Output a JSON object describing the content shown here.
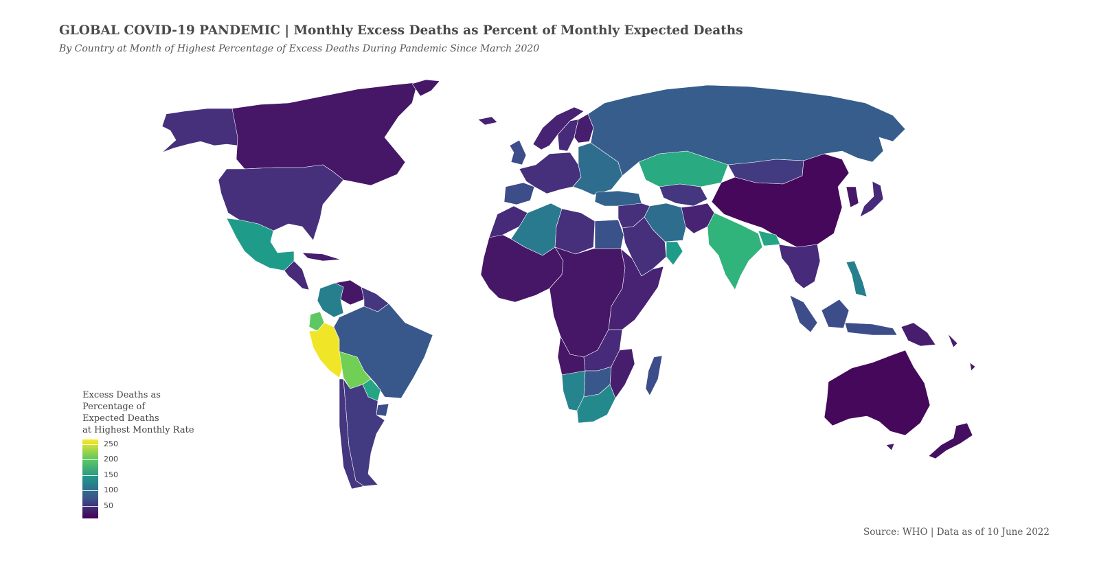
{
  "header": {
    "title": "GLOBAL COVID-19 PANDEMIC | Monthly Excess Deaths as Percent of Monthly Expected Deaths",
    "subtitle": "By Country at Month of Highest Percentage of Excess Deaths During Pandemic Since March 2020"
  },
  "legend": {
    "title_lines": [
      "Excess Deaths as",
      "Percentage of",
      "Expected Deaths",
      "at Highest Monthly Rate"
    ],
    "ticks": [
      {
        "label": "250",
        "value": 250
      },
      {
        "label": "200",
        "value": 200
      },
      {
        "label": "150",
        "value": 150
      },
      {
        "label": "100",
        "value": 100
      },
      {
        "label": "50",
        "value": 50
      }
    ],
    "scale_min": 10,
    "scale_max": 265
  },
  "footer": {
    "source": "Source: WHO | Data as of 10 June 2022"
  },
  "map": {
    "color_scale": "viridis",
    "border_color": "#ffffff",
    "region_values": {
      "canada": 25,
      "alaska": 45,
      "usa": 45,
      "greenland": 25,
      "mexico": 150,
      "central-america": 40,
      "cuba": 30,
      "colombia": 120,
      "venezuela": 25,
      "guianas": 50,
      "ecuador": 200,
      "peru": 260,
      "bolivia": 210,
      "brazil": 80,
      "paraguay": 160,
      "uruguay": 70,
      "chile": 50,
      "argentina": 55,
      "iceland": 35,
      "uk": 70,
      "norway": 35,
      "sweden": 40,
      "finland": 30,
      "western-europe": 45,
      "spain": 70,
      "eastern-europe": 100,
      "russia": 85,
      "kazakhstan": 165,
      "central-asia": 50,
      "turkey": 90,
      "iran": 100,
      "middle-east": 45,
      "saudi-arabia": 45,
      "oman": 150,
      "morocco": 40,
      "algeria": 115,
      "libya": 45,
      "egypt": 75,
      "west-africa": 25,
      "central-africa": 25,
      "east-africa": 35,
      "angola": 25,
      "namibia": 125,
      "botswana": 80,
      "south-africa": 130,
      "zambia": 40,
      "mozambique": 30,
      "madagascar": 70,
      "afghanistan": 35,
      "india": 175,
      "nepal": 160,
      "mongolia": 55,
      "china": 15,
      "southeast-asia": 40,
      "indonesia": 70,
      "philippines": 120,
      "japan": 40,
      "korea": 25,
      "png": 30,
      "australia": 15,
      "new-zealand": 20,
      "pacific-islands": 30
    }
  }
}
